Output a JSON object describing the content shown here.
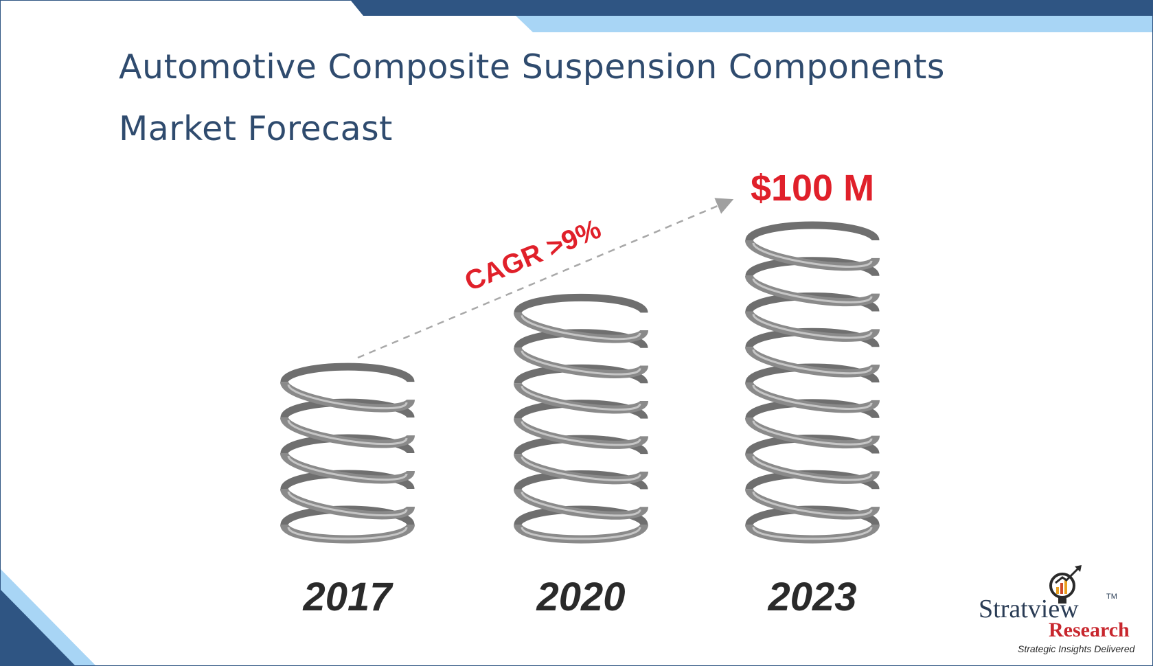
{
  "title": {
    "line1": "Automotive Composite Suspension Components",
    "line2": "Market Forecast"
  },
  "colors": {
    "title": "#2f4b6e",
    "accent_red": "#e0202a",
    "band_dark": "#2f5583",
    "band_light": "#a8d5f5",
    "spring": "#8a8a8a"
  },
  "chart_data": {
    "type": "bar",
    "categories": [
      "2017",
      "2020",
      "2023"
    ],
    "values": [
      null,
      null,
      100
    ],
    "value_unit": "$ M",
    "value_labels": [
      "",
      "",
      "$100 M"
    ],
    "annotation": "CAGR >9%",
    "bar_style": "coil-spring",
    "relative_heights": [
      0.55,
      0.77,
      1.0
    ]
  },
  "logo": {
    "name": "Stratview",
    "tm": "TM",
    "subtitle": "Research",
    "tagline": "Strategic Insights Delivered"
  }
}
